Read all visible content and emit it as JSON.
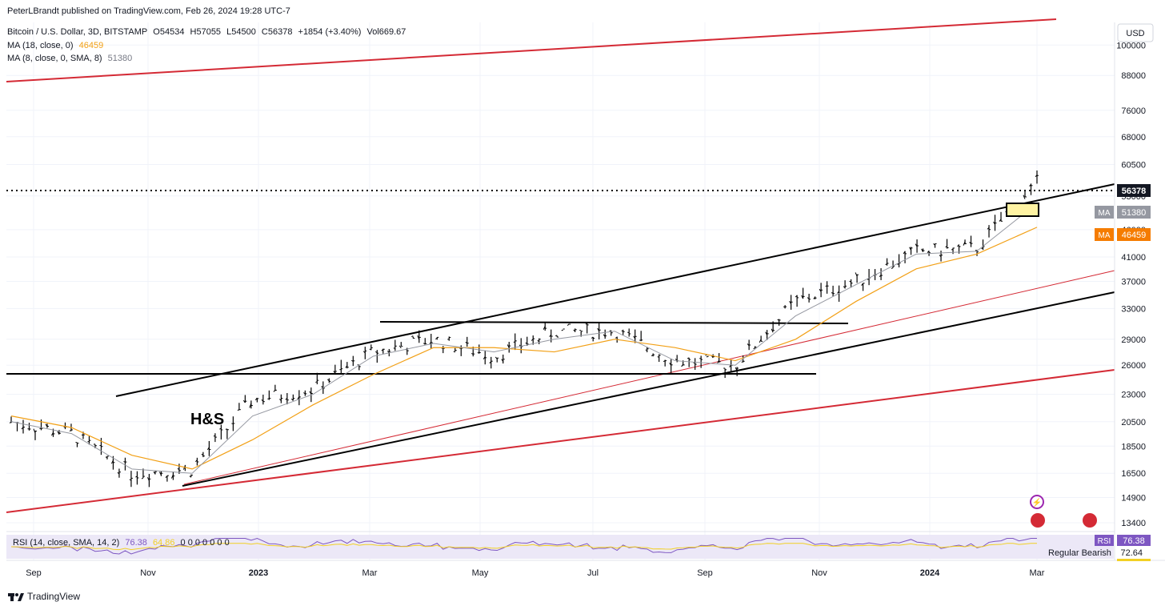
{
  "header": {
    "publisher": "PeterLBrandt published on TradingView.com, Feb 26, 2024 19:28 UTC-7",
    "symbol_line": "Bitcoin / U.S. Dollar, 3D, BITSTAMP",
    "ohlc": {
      "o": "O54534",
      "h": "H57055",
      "l": "L54500",
      "c": "C56378",
      "chg": "+1854 (+3.40%)",
      "vol": "Vol669.67"
    },
    "ma18_label": "MA (18, close, 0)",
    "ma18_value": "46459",
    "ma8_label": "MA (8, close, 0, SMA, 8)",
    "ma8_value": "51380"
  },
  "axis": {
    "currency": "USD",
    "price_ticks": [
      "100000",
      "88000",
      "76000",
      "68000",
      "60500",
      "53000",
      "46000",
      "41000",
      "37000",
      "33000",
      "29000",
      "26000",
      "23000",
      "20500",
      "18500",
      "16500",
      "14900",
      "13400"
    ],
    "time_ticks": [
      "Sep",
      "Nov",
      "2023",
      "Mar",
      "May",
      "Jul",
      "Sep",
      "Nov",
      "2024",
      "Mar"
    ]
  },
  "price_labels": {
    "last": "56378",
    "ma8_tag": "MA",
    "ma8": "51380",
    "ma18_tag": "MA",
    "ma18": "46459"
  },
  "annotation": "H&S",
  "rsi": {
    "label": "RSI (14, close, SMA, 14, 2)",
    "value": "76.38",
    "extra": "64.86",
    "zeros": "0 0 0 0 0 0 0",
    "tag": "RSI",
    "tag_value": "76.38",
    "bearish_label": "Regular Bearish",
    "bearish_value": "72.64"
  },
  "brand": "TradingView",
  "colors": {
    "red_line": "#d42a35",
    "orange_ma": "#f2a016",
    "gray_ma": "#9598a1",
    "rsi_band": "#ece8f7"
  },
  "chart_data": {
    "type": "line",
    "series": [
      {
        "name": "BTC/USD",
        "x": [
          "2022-09",
          "2022-10",
          "2022-11",
          "2022-12",
          "2023-01",
          "2023-02",
          "2023-03",
          "2023-04",
          "2023-05",
          "2023-06",
          "2023-07",
          "2023-08",
          "2023-09",
          "2023-10",
          "2023-11",
          "2023-12",
          "2024-01",
          "2024-02"
        ],
        "y": [
          20500,
          19500,
          16500,
          16800,
          22500,
          23500,
          27500,
          29000,
          27000,
          30000,
          30000,
          26500,
          26000,
          34000,
          37000,
          42000,
          42500,
          56378
        ]
      },
      {
        "name": "MA (18, close, 0)",
        "y": [
          21000,
          20000,
          17800,
          16800,
          19000,
          22000,
          25000,
          28000,
          28000,
          27500,
          29000,
          28000,
          26500,
          29000,
          34000,
          39000,
          41500,
          46459
        ]
      },
      {
        "name": "MA (8, close, 0, SMA, 8)",
        "y": [
          20500,
          19500,
          16800,
          16500,
          21000,
          23000,
          27000,
          28500,
          27500,
          29000,
          30000,
          26500,
          26000,
          32000,
          36500,
          41500,
          42000,
          51380
        ]
      }
    ],
    "yscale": "log",
    "ylim": [
      13000,
      110000
    ]
  }
}
